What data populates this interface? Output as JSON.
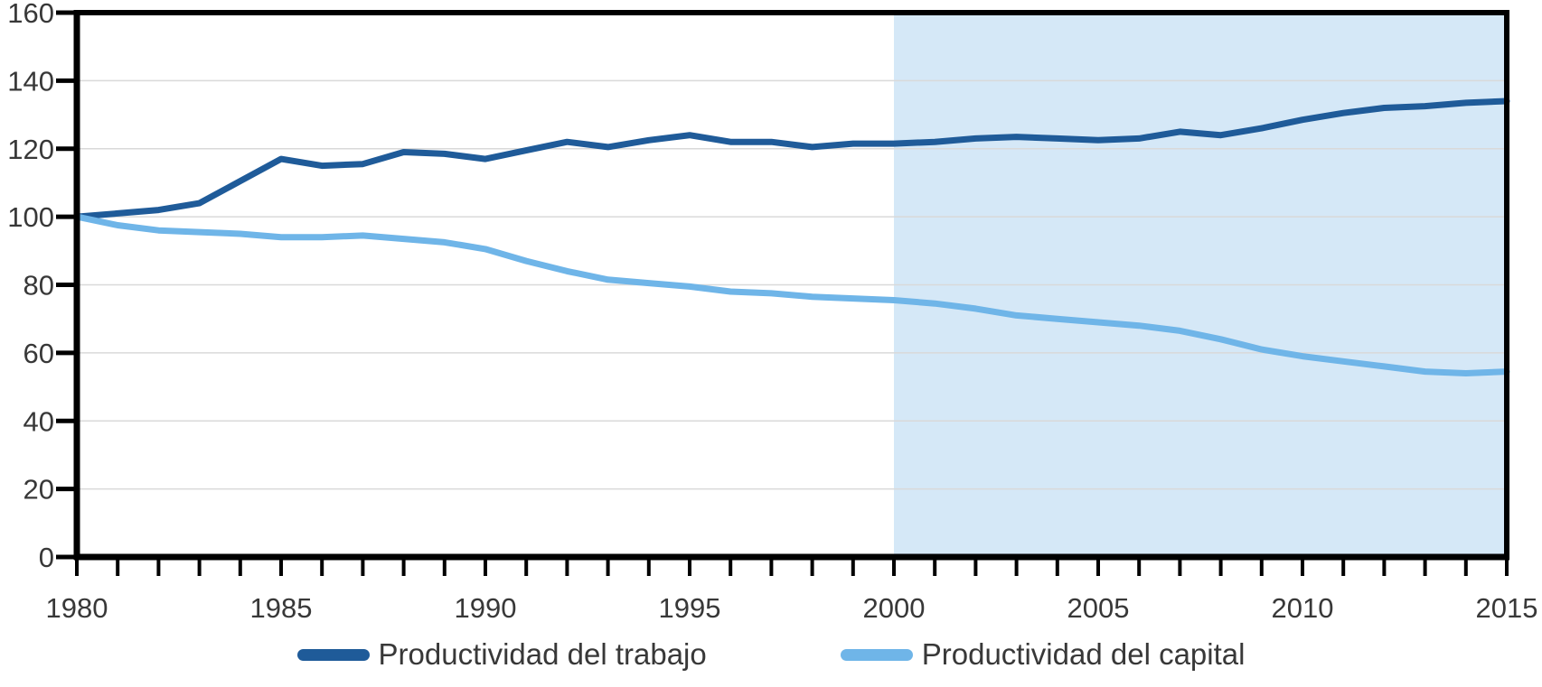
{
  "chart_data": {
    "type": "line",
    "title": "",
    "xlabel": "",
    "ylabel": "",
    "xlim": [
      1980,
      2015
    ],
    "ylim": [
      0,
      160
    ],
    "grid": true,
    "legend_position": "bottom-center",
    "x": [
      1980,
      1981,
      1982,
      1983,
      1984,
      1985,
      1986,
      1987,
      1988,
      1989,
      1990,
      1991,
      1992,
      1993,
      1994,
      1995,
      1996,
      1997,
      1998,
      1999,
      2000,
      2001,
      2002,
      2003,
      2004,
      2005,
      2006,
      2007,
      2008,
      2009,
      2010,
      2011,
      2012,
      2013,
      2014,
      2015
    ],
    "x_ticks": [
      1980,
      1985,
      1990,
      1995,
      2000,
      2005,
      2010,
      2015
    ],
    "x_tick_labels": [
      "1980",
      "1985",
      "1990",
      "1995",
      "2000",
      "2005",
      "2010",
      "2015"
    ],
    "y_ticks": [
      0,
      20,
      40,
      60,
      80,
      100,
      120,
      140,
      160
    ],
    "y_tick_labels": [
      "0",
      "20",
      "40",
      "60",
      "80",
      "100",
      "120",
      "140",
      "160"
    ],
    "shaded_region": {
      "from_x": 2000,
      "to_x": 2015,
      "color": "#D5E8F7"
    },
    "series": [
      {
        "name": "Productividad del trabajo",
        "color": "#1F5B99",
        "values": [
          100,
          101,
          102,
          104,
          110.5,
          117,
          115,
          115.5,
          119,
          118.5,
          117,
          119.5,
          122,
          120.5,
          122.5,
          124,
          122,
          122,
          120.5,
          121.5,
          121.5,
          122,
          123,
          123.5,
          123,
          122.5,
          123,
          125,
          124,
          126,
          128.5,
          130.5,
          132,
          132.5,
          133.5,
          134
        ]
      },
      {
        "name": "Productividad del capital",
        "color": "#6FB5E8",
        "values": [
          100,
          97.5,
          96,
          95.5,
          95,
          94,
          94,
          94.5,
          93.5,
          92.5,
          90.5,
          87,
          84,
          81.5,
          80.5,
          79.5,
          78,
          77.5,
          76.5,
          76,
          75.5,
          74.5,
          73,
          71,
          70,
          69,
          68,
          66.5,
          64,
          61,
          59,
          57.5,
          56,
          54.5,
          54,
          54.5
        ]
      }
    ]
  },
  "styles": {
    "background": "#FFFFFF",
    "gridline_color": "#D9D9D9",
    "axis_color": "#000000",
    "tick_label_color": "#383838",
    "legend_text_color": "#383838"
  }
}
